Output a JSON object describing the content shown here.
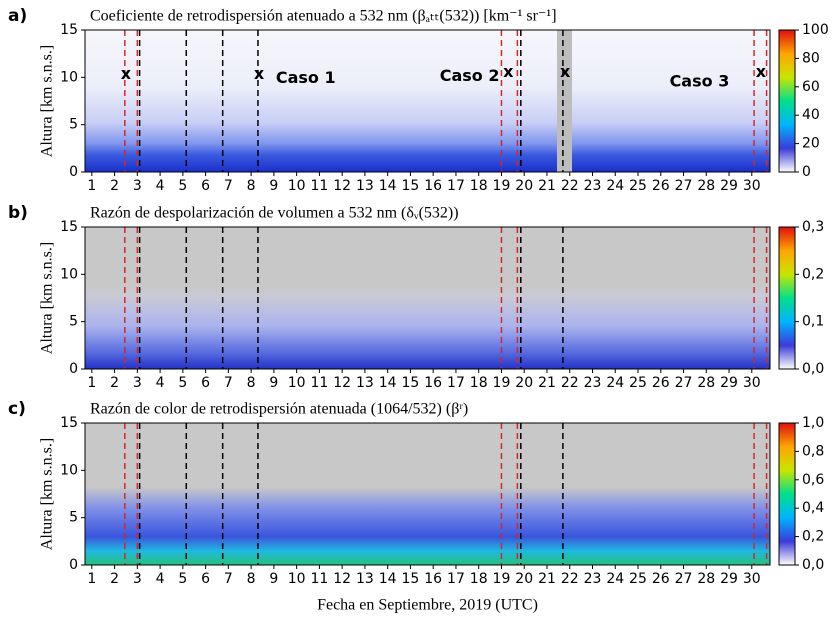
{
  "chart_data": [
    {
      "type": "heatmap",
      "panel": "a)",
      "title": "Coeficiente de retrodispersión atenuado a 532 nm (βₐₜₜ(532)) [km⁻¹ sr⁻¹]",
      "ylabel": "Altura [km s.n.s.]",
      "xlim": [
        0.7,
        30.8
      ],
      "ylim": [
        0,
        15
      ],
      "yticks": [
        0,
        5,
        10,
        15
      ],
      "xticks": [
        1,
        2,
        3,
        4,
        5,
        6,
        7,
        8,
        9,
        10,
        11,
        12,
        13,
        14,
        15,
        16,
        17,
        18,
        19,
        20,
        21,
        22,
        23,
        24,
        25,
        26,
        27,
        28,
        29,
        30
      ],
      "clim": [
        0,
        100
      ],
      "cticks": [
        0,
        20,
        40,
        60,
        80,
        100
      ],
      "colormap": [
        "#ffffff",
        "#3b3bd9",
        "#00b4ff",
        "#00e08a",
        "#c8e600",
        "#ffa500",
        "#e01010"
      ],
      "vlines": [
        {
          "x": 2.45,
          "color": "#d62728"
        },
        {
          "x": 3.0,
          "color": "#d62728"
        },
        {
          "x": 3.1,
          "color": "#000000"
        },
        {
          "x": 5.15,
          "color": "#000000"
        },
        {
          "x": 6.75,
          "color": "#000000"
        },
        {
          "x": 8.3,
          "color": "#000000"
        },
        {
          "x": 19.0,
          "color": "#d62728"
        },
        {
          "x": 19.7,
          "color": "#d62728"
        },
        {
          "x": 19.85,
          "color": "#000000"
        },
        {
          "x": 21.7,
          "color": "#000000"
        },
        {
          "x": 30.1,
          "color": "#d62728"
        },
        {
          "x": 30.65,
          "color": "#d62728"
        }
      ],
      "annotations": [
        {
          "text": "x",
          "x": 2.5,
          "y": 10.3
        },
        {
          "text": "x",
          "x": 8.35,
          "y": 10.3
        },
        {
          "text": "Caso 1",
          "x": 10.4,
          "y": 9.9
        },
        {
          "text": "Caso 2",
          "x": 17.6,
          "y": 10.1
        },
        {
          "text": "x",
          "x": 19.3,
          "y": 10.5
        },
        {
          "text": "x",
          "x": 21.8,
          "y": 10.5
        },
        {
          "text": "Caso 3",
          "x": 27.7,
          "y": 9.5
        },
        {
          "text": "x",
          "x": 30.4,
          "y": 10.5
        }
      ]
    },
    {
      "type": "heatmap",
      "panel": "b)",
      "title": "Razón de despolarización de volumen a 532 nm (δᵥ(532))",
      "ylabel": "Altura [km s.n.s.]",
      "xlim": [
        0.7,
        30.8
      ],
      "ylim": [
        0,
        15
      ],
      "yticks": [
        0,
        5,
        10,
        15
      ],
      "xticks": [
        1,
        2,
        3,
        4,
        5,
        6,
        7,
        8,
        9,
        10,
        11,
        12,
        13,
        14,
        15,
        16,
        17,
        18,
        19,
        20,
        21,
        22,
        23,
        24,
        25,
        26,
        27,
        28,
        29,
        30
      ],
      "clim": [
        0,
        0.3
      ],
      "cticks": [
        {
          "value": 0,
          "label": "0,0"
        },
        {
          "value": 0.1,
          "label": "0,1"
        },
        {
          "value": 0.2,
          "label": "0,2"
        },
        {
          "value": 0.3,
          "label": "0,3"
        }
      ],
      "colormap": [
        "#ffffff",
        "#3b3bd9",
        "#00b4ff",
        "#00e08a",
        "#c8e600",
        "#ffa500",
        "#e01010"
      ],
      "vlines": [
        {
          "x": 2.45,
          "color": "#d62728"
        },
        {
          "x": 3.0,
          "color": "#d62728"
        },
        {
          "x": 3.1,
          "color": "#000000"
        },
        {
          "x": 5.15,
          "color": "#000000"
        },
        {
          "x": 6.75,
          "color": "#000000"
        },
        {
          "x": 8.3,
          "color": "#000000"
        },
        {
          "x": 19.0,
          "color": "#d62728"
        },
        {
          "x": 19.7,
          "color": "#d62728"
        },
        {
          "x": 19.85,
          "color": "#000000"
        },
        {
          "x": 21.7,
          "color": "#000000"
        },
        {
          "x": 30.1,
          "color": "#d62728"
        },
        {
          "x": 30.65,
          "color": "#d62728"
        }
      ]
    },
    {
      "type": "heatmap",
      "panel": "c)",
      "title": "Razón de color de retrodispersión atenuada (1064/532)  (βʳ)",
      "ylabel": "Altura [km s.n.s.]",
      "xlabel": "Fecha en Septiembre, 2019 (UTC)",
      "xlim": [
        0.7,
        30.8
      ],
      "ylim": [
        0,
        15
      ],
      "yticks": [
        0,
        5,
        10,
        15
      ],
      "xticks": [
        1,
        2,
        3,
        4,
        5,
        6,
        7,
        8,
        9,
        10,
        11,
        12,
        13,
        14,
        15,
        16,
        17,
        18,
        19,
        20,
        21,
        22,
        23,
        24,
        25,
        26,
        27,
        28,
        29,
        30
      ],
      "clim": [
        0,
        1
      ],
      "cticks": [
        {
          "value": 0,
          "label": "0,0"
        },
        {
          "value": 0.2,
          "label": "0,2"
        },
        {
          "value": 0.4,
          "label": "0,4"
        },
        {
          "value": 0.6,
          "label": "0,6"
        },
        {
          "value": 0.8,
          "label": "0,8"
        },
        {
          "value": 1,
          "label": "1,0"
        }
      ],
      "colormap": [
        "#ffffff",
        "#3b3bd9",
        "#00b4ff",
        "#00e08a",
        "#c8e600",
        "#ffa500",
        "#e01010"
      ],
      "vlines": [
        {
          "x": 2.45,
          "color": "#d62728"
        },
        {
          "x": 3.0,
          "color": "#d62728"
        },
        {
          "x": 3.1,
          "color": "#000000"
        },
        {
          "x": 5.15,
          "color": "#000000"
        },
        {
          "x": 6.75,
          "color": "#000000"
        },
        {
          "x": 8.3,
          "color": "#000000"
        },
        {
          "x": 19.0,
          "color": "#d62728"
        },
        {
          "x": 19.7,
          "color": "#d62728"
        },
        {
          "x": 19.85,
          "color": "#000000"
        },
        {
          "x": 21.7,
          "color": "#000000"
        },
        {
          "x": 30.1,
          "color": "#d62728"
        },
        {
          "x": 30.65,
          "color": "#d62728"
        }
      ]
    }
  ]
}
